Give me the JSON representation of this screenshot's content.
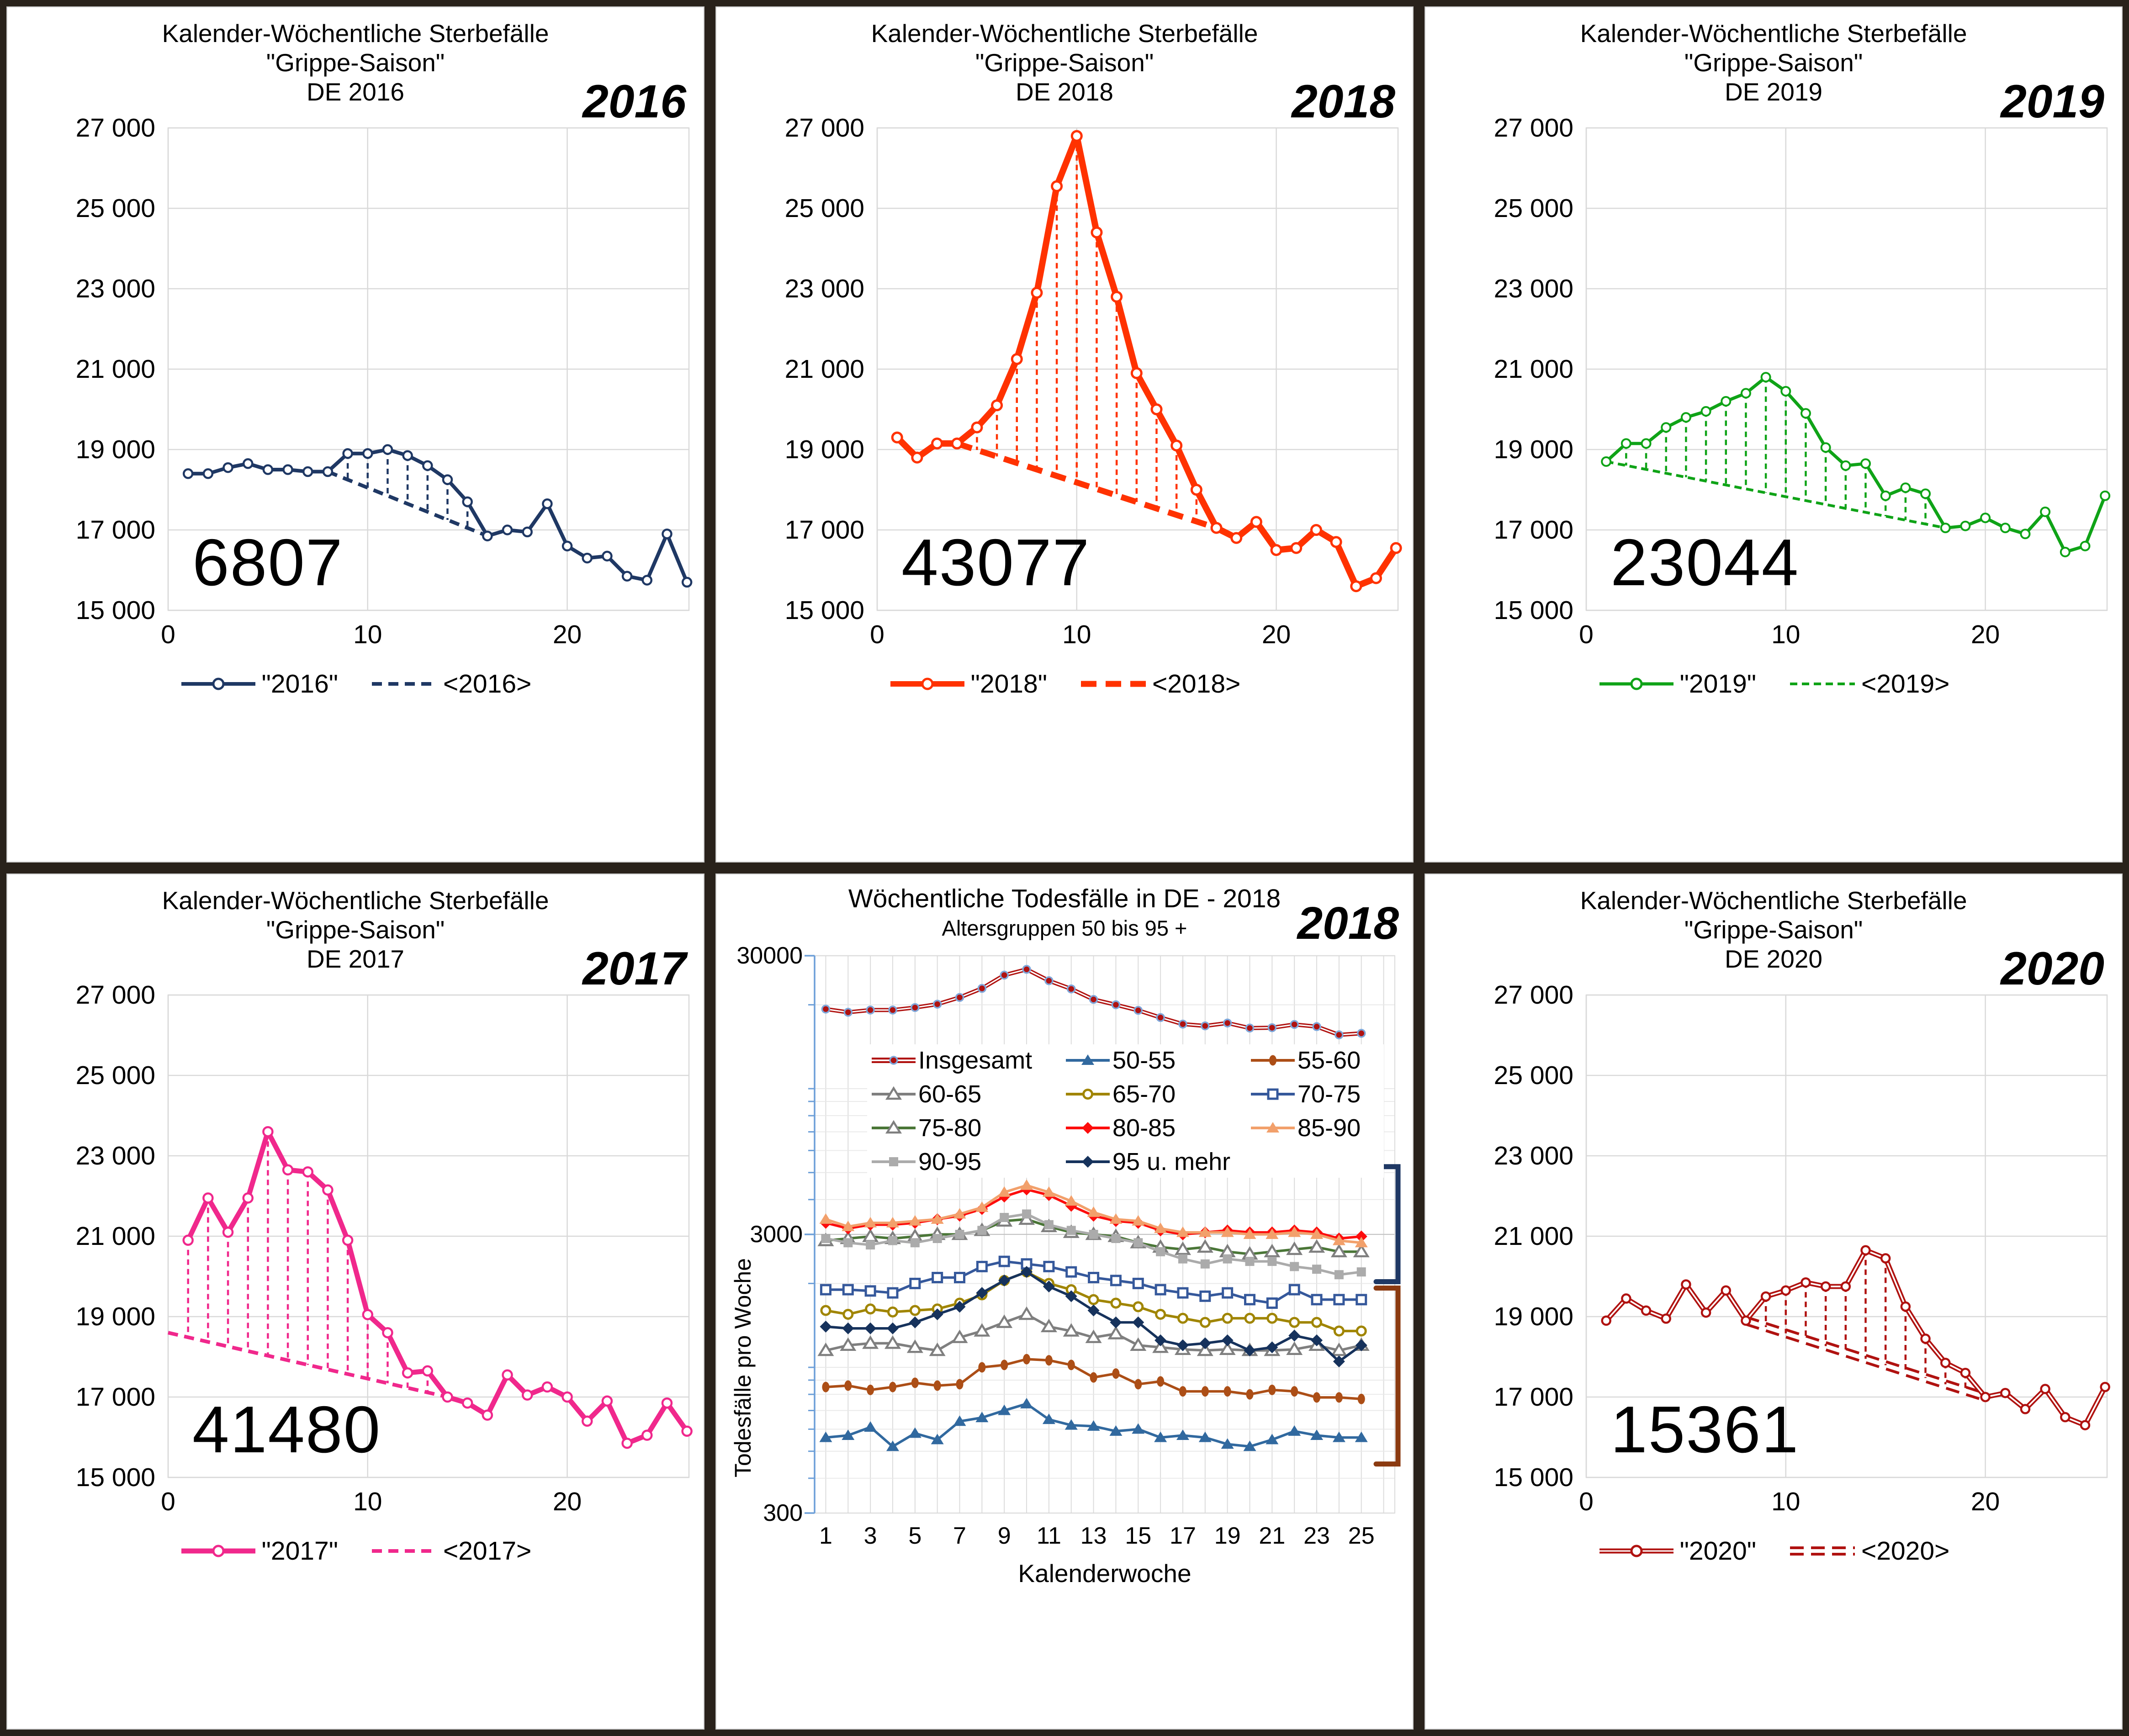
{
  "page": {
    "background_color": "#29221B",
    "panel_border_color": "#C6C6C6",
    "gridline_color": "#D9D9D9"
  },
  "year_axis": {
    "tick_labels": [
      "27 000",
      "25 000",
      "23 000",
      "21 000",
      "19 000",
      "17 000",
      "15 000"
    ],
    "tick_values": [
      27000,
      25000,
      23000,
      21000,
      19000,
      17000,
      15000
    ],
    "x_tick_values": [
      0,
      10,
      20
    ],
    "ylim": [
      15000,
      27000
    ],
    "xlim": [
      0,
      26.1
    ]
  },
  "chart_data": [
    {
      "panel_type": "year",
      "type": "line",
      "title_lines": [
        "Kalender-Wöchentliche Sterbefälle",
        "\"Grippe-Saison\"",
        "DE 2016"
      ],
      "corner_year": "2016",
      "excess_number": "6807",
      "legend": [
        "\"2016\"",
        "<2016>"
      ],
      "color": "#1F3864",
      "line_width": 8,
      "marker_r": 9.5,
      "marker_stroke": 4.5,
      "baseline": {
        "x1": 8,
        "y1": 18450,
        "x2": 16,
        "y2": 16850
      },
      "baseline_width": 8,
      "baseline_dash": "22 14",
      "hatch_weeks": [
        9,
        15
      ],
      "weeks": [
        1,
        2,
        3,
        4,
        5,
        6,
        7,
        8,
        9,
        10,
        11,
        12,
        13,
        14,
        15,
        16,
        17,
        18,
        19,
        20,
        21,
        22,
        23,
        24,
        25,
        26
      ],
      "values": [
        18400,
        18400,
        18550,
        18650,
        18500,
        18500,
        18450,
        18450,
        18900,
        18900,
        19000,
        18850,
        18600,
        18250,
        17700,
        16850,
        17000,
        16950,
        17650,
        16600,
        16300,
        16350,
        15850,
        15750,
        16900,
        15700
      ]
    },
    {
      "panel_type": "year",
      "type": "line",
      "title_lines": [
        "Kalender-Wöchentliche Sterbefälle",
        "\"Grippe-Saison\"",
        "DE 2018"
      ],
      "corner_year": "2018",
      "excess_number": "43077",
      "legend": [
        "\"2018\"",
        "<2018>"
      ],
      "color": "#FF3200",
      "line_width": 14,
      "marker_r": 10.5,
      "marker_stroke": 5,
      "baseline": {
        "x1": 4,
        "y1": 19150,
        "x2": 17,
        "y2": 17050
      },
      "baseline_width": 13,
      "baseline_dash": "34 20",
      "hatch_weeks": [
        5,
        16
      ],
      "weeks": [
        1,
        2,
        3,
        4,
        5,
        6,
        7,
        8,
        9,
        10,
        11,
        12,
        13,
        14,
        15,
        16,
        17,
        18,
        19,
        20,
        21,
        22,
        23,
        24,
        25,
        26
      ],
      "values": [
        19300,
        18800,
        19150,
        19150,
        19550,
        20100,
        21250,
        22900,
        25550,
        26800,
        24400,
        22800,
        20900,
        20000,
        19100,
        18000,
        17050,
        16800,
        17200,
        16500,
        16550,
        17000,
        16700,
        15600,
        15800,
        16550
      ]
    },
    {
      "panel_type": "year",
      "type": "line",
      "title_lines": [
        "Kalender-Wöchentliche Sterbefälle",
        "\"Grippe-Saison\"",
        "DE 2019"
      ],
      "corner_year": "2019",
      "excess_number": "23044",
      "legend": [
        "\"2019\"",
        "<2019>"
      ],
      "color": "#0FA317",
      "line_width": 7,
      "marker_r": 9.5,
      "marker_stroke": 4,
      "baseline": {
        "x1": 1,
        "y1": 18700,
        "x2": 18,
        "y2": 17050
      },
      "baseline_width": 6,
      "baseline_dash": "16 10",
      "hatch_weeks": [
        2,
        17
      ],
      "weeks": [
        1,
        2,
        3,
        4,
        5,
        6,
        7,
        8,
        9,
        10,
        11,
        12,
        13,
        14,
        15,
        16,
        17,
        18,
        19,
        20,
        21,
        22,
        23,
        24,
        25,
        26
      ],
      "values": [
        18700,
        19150,
        19150,
        19550,
        19800,
        19950,
        20200,
        20400,
        20800,
        20450,
        19900,
        19050,
        18600,
        18650,
        17850,
        18050,
        17900,
        17050,
        17100,
        17300,
        17050,
        16900,
        17450,
        16450,
        16600,
        17850
      ]
    },
    {
      "panel_type": "year",
      "type": "line",
      "title_lines": [
        "Kalender-Wöchentliche Sterbefälle",
        "\"Grippe-Saison\"",
        "DE 2017"
      ],
      "corner_year": "2017",
      "excess_number": "41480",
      "legend": [
        "\"2017\"",
        "<2017>"
      ],
      "color": "#F0288C",
      "line_width": 11,
      "marker_r": 10,
      "marker_stroke": 4.5,
      "baseline": {
        "x1": 0,
        "y1": 18600,
        "x2": 14,
        "y2": 17000
      },
      "baseline_width": 8,
      "baseline_dash": "22 14",
      "hatch_weeks": [
        1,
        13
      ],
      "weeks": [
        1,
        2,
        3,
        4,
        5,
        6,
        7,
        8,
        9,
        10,
        11,
        12,
        13,
        14,
        15,
        16,
        17,
        18,
        19,
        20,
        21,
        22,
        23,
        24,
        25,
        26
      ],
      "values": [
        20900,
        21950,
        21100,
        21950,
        23600,
        22650,
        22600,
        22150,
        20900,
        19050,
        18600,
        17600,
        17650,
        17000,
        16850,
        16550,
        17550,
        17050,
        17250,
        17000,
        16400,
        16900,
        15850,
        16050,
        16850,
        16150
      ]
    },
    {
      "panel_type": "agegroups",
      "type": "line",
      "title": "Wöchentliche Todesfälle in DE - 2018",
      "subtitle": "Altersgruppen 50 bis 95 +",
      "corner_year": "2018",
      "ylabel": "Todesfälle   pro  Woche",
      "xlabel": "Kalenderwoche",
      "y_tick_labels": [
        "30000",
        "3000",
        "300"
      ],
      "y_tick_values": [
        30000,
        3000,
        300
      ],
      "x_tick_values": [
        1,
        3,
        5,
        7,
        9,
        11,
        13,
        15,
        17,
        19,
        21,
        23,
        25
      ],
      "ylim": [
        300,
        30000
      ],
      "yscale": "log",
      "minor_grid_values": [
        400,
        500,
        600,
        700,
        800,
        900,
        1000,
        2000,
        4000,
        5000,
        6000,
        7000,
        8000,
        9000,
        10000,
        20000
      ],
      "axis_color": "#6D9FD8",
      "brackets": [
        {
          "color": "#1F3864",
          "v1": 5250,
          "v2": 2030
        },
        {
          "color": "#8B3A10",
          "v1": 1925,
          "v2": 450
        }
      ],
      "weeks": [
        1,
        2,
        3,
        4,
        5,
        6,
        7,
        8,
        9,
        10,
        11,
        12,
        13,
        14,
        15,
        16,
        17,
        18,
        19,
        20,
        21,
        22,
        23,
        24,
        25
      ],
      "series": [
        {
          "name": "Insgesamt",
          "color": "#B01210",
          "marker": "total",
          "double": true,
          "line_width": 9,
          "values": [
            19300,
            18800,
            19150,
            19150,
            19550,
            20100,
            21250,
            22900,
            25550,
            26800,
            24400,
            22800,
            20900,
            20000,
            19100,
            18000,
            17050,
            16800,
            17200,
            16500,
            16550,
            17000,
            16700,
            15600,
            15800
          ]
        },
        {
          "name": "50-55",
          "color": "#31699F",
          "marker": "triangle",
          "line_width": 5.5,
          "values": [
            560,
            570,
            610,
            520,
            580,
            550,
            640,
            660,
            700,
            740,
            650,
            620,
            615,
            590,
            600,
            560,
            570,
            560,
            530,
            520,
            550,
            590,
            570,
            560,
            560
          ]
        },
        {
          "name": "55-60",
          "color": "#AC4E16",
          "marker": "ellipse",
          "line_width": 5.5,
          "values": [
            850,
            860,
            830,
            850,
            880,
            860,
            870,
            1000,
            1020,
            1070,
            1060,
            1020,
            920,
            950,
            870,
            890,
            820,
            820,
            820,
            800,
            830,
            820,
            780,
            780,
            770
          ]
        },
        {
          "name": "60-65",
          "color": "#7F7F7F",
          "marker": "triangle-open",
          "line_width": 5.5,
          "values": [
            1150,
            1200,
            1220,
            1220,
            1180,
            1150,
            1280,
            1350,
            1450,
            1550,
            1400,
            1350,
            1280,
            1320,
            1200,
            1180,
            1160,
            1150,
            1160,
            1150,
            1150,
            1160,
            1200,
            1150,
            1200
          ]
        },
        {
          "name": "65-70",
          "color": "#A08500",
          "marker": "circle-open",
          "line_width": 5.5,
          "values": [
            1600,
            1550,
            1620,
            1580,
            1600,
            1620,
            1700,
            1820,
            2050,
            2200,
            2000,
            1900,
            1750,
            1700,
            1650,
            1550,
            1500,
            1450,
            1500,
            1500,
            1500,
            1450,
            1450,
            1350,
            1350
          ]
        },
        {
          "name": "70-75",
          "color": "#35589B",
          "marker": "square-open",
          "line_width": 5.5,
          "values": [
            1900,
            1900,
            1880,
            1850,
            2000,
            2100,
            2100,
            2300,
            2400,
            2350,
            2300,
            2200,
            2100,
            2050,
            2000,
            1900,
            1850,
            1800,
            1850,
            1750,
            1700,
            1900,
            1750,
            1750,
            1750
          ]
        },
        {
          "name": "75-80",
          "color": "#4A7637",
          "marker": "triangle-open",
          "marker_stroke_color": "#7F7F7F",
          "line_width": 5.5,
          "values": [
            2850,
            2900,
            2950,
            2900,
            2950,
            3000,
            3000,
            3100,
            3350,
            3400,
            3200,
            3050,
            3000,
            2950,
            2800,
            2700,
            2650,
            2700,
            2600,
            2550,
            2600,
            2650,
            2700,
            2600,
            2600
          ]
        },
        {
          "name": "80-85",
          "color": "#FD0D0C",
          "marker": "diamond",
          "line_width": 5.5,
          "values": [
            3300,
            3150,
            3250,
            3250,
            3300,
            3400,
            3500,
            3700,
            4100,
            4350,
            4150,
            3800,
            3500,
            3350,
            3300,
            3100,
            3000,
            3050,
            3100,
            3050,
            3050,
            3100,
            3050,
            2900,
            2950
          ]
        },
        {
          "name": "85-90",
          "color": "#F2A06B",
          "marker": "triangle",
          "line_width": 5.5,
          "values": [
            3400,
            3200,
            3300,
            3300,
            3350,
            3400,
            3550,
            3750,
            4250,
            4500,
            4250,
            3950,
            3600,
            3400,
            3350,
            3150,
            3050,
            3050,
            3050,
            3000,
            3000,
            3050,
            3000,
            2850,
            2800
          ]
        },
        {
          "name": "90-95",
          "color": "#ABABAB",
          "marker": "square",
          "line_width": 5.5,
          "values": [
            2900,
            2800,
            2750,
            2850,
            2800,
            2900,
            3000,
            3100,
            3450,
            3550,
            3250,
            3100,
            3000,
            2900,
            2800,
            2600,
            2450,
            2350,
            2450,
            2400,
            2400,
            2300,
            2250,
            2150,
            2200
          ]
        },
        {
          "name": "95 u. mehr",
          "color": "#16325C",
          "marker": "diamond",
          "line_width": 5.5,
          "values": [
            1400,
            1380,
            1380,
            1380,
            1450,
            1550,
            1650,
            1850,
            2050,
            2200,
            1950,
            1800,
            1600,
            1450,
            1450,
            1250,
            1200,
            1220,
            1250,
            1150,
            1180,
            1300,
            1250,
            1050,
            1200
          ]
        }
      ]
    },
    {
      "panel_type": "year",
      "type": "line",
      "title_lines": [
        "Kalender-Wöchentliche Sterbefälle",
        "\"Grippe-Saison\"",
        "DE 2020"
      ],
      "corner_year": "2020",
      "excess_number": "15361",
      "legend": [
        "\"2020\"",
        "<2020>"
      ],
      "color": "#B01210",
      "line_width": 11,
      "marker_r": 9,
      "marker_stroke": 4.5,
      "double_style": true,
      "double_baseline": true,
      "baseline": {
        "x1": 8,
        "y1": 18900,
        "x2": 20,
        "y2": 17000
      },
      "baseline_width": 6,
      "baseline_dash": "30 16",
      "hatch_weeks": [
        9,
        19
      ],
      "weeks": [
        1,
        2,
        3,
        4,
        5,
        6,
        7,
        8,
        9,
        10,
        11,
        12,
        13,
        14,
        15,
        16,
        17,
        18,
        19,
        20,
        21,
        22,
        23,
        24,
        25,
        26
      ],
      "values": [
        18900,
        19450,
        19150,
        18950,
        19800,
        19100,
        19650,
        18900,
        19500,
        19650,
        19850,
        19750,
        19750,
        20650,
        20450,
        19250,
        18450,
        17850,
        17600,
        17000,
        17100,
        16700,
        17200,
        16500,
        16300,
        17250
      ]
    }
  ]
}
